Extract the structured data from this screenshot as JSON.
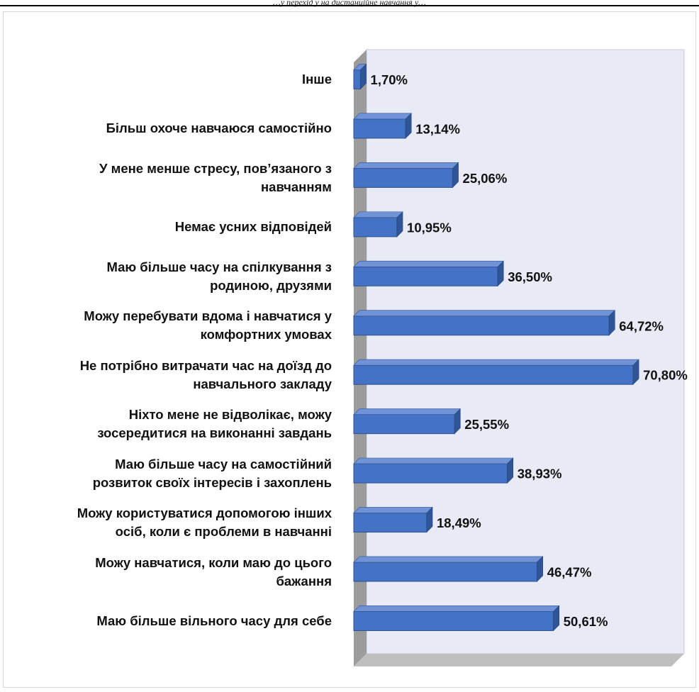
{
  "page": {
    "header_text": "…у перехід у на дистанційне навчання у…"
  },
  "chart_data": {
    "type": "bar",
    "orientation": "horizontal",
    "three_d": true,
    "bar_color": "#4472c4",
    "grid": false,
    "categories": [
      "Інше",
      "Більш охоче навчаюся самостійно",
      "У мене менше стресу, пов’язаного з\nнавчанням",
      "Немає усних відповідей",
      "Маю більше часу на спілкування з\nродиною, друзями",
      "Можу перебувати вдома і навчатися у\nкомфортних умовах",
      "Не потрібно витрачати час на доїзд до\nнавчального  закладу",
      "Ніхто мене не відволікає, можу\nзосередитися на виконанні завдань",
      "Маю більше часу на самостійний\nрозвиток своїх інтересів і захоплень",
      "Можу користуватися допомогою інших\nосіб, коли є проблеми в навчанні",
      "Можу навчатися, коли маю до цього\nбажання",
      "Маю більше вільного часу для себе"
    ],
    "values": [
      1.7,
      13.14,
      25.06,
      10.95,
      36.5,
      64.72,
      70.8,
      25.55,
      38.93,
      18.49,
      46.47,
      50.61
    ],
    "value_labels": [
      "1,70%",
      "13,14%",
      "25,06%",
      "10,95%",
      "36,50%",
      "64,72%",
      "70,80%",
      "25,55%",
      "38,93%",
      "18,49%",
      "46,47%",
      "50,61%"
    ],
    "xlim": [
      0,
      70.8
    ]
  }
}
